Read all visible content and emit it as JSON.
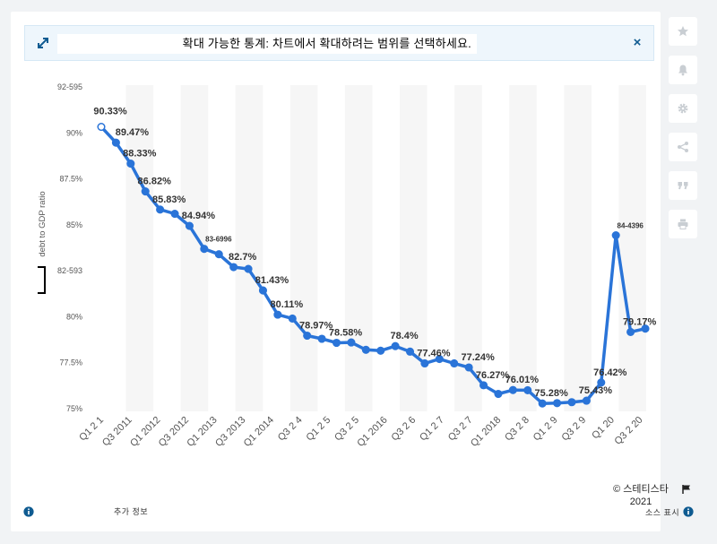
{
  "banner": {
    "text": "확대 가능한 통계: 차트에서 확대하려는 범위를 선택하세요.",
    "expand_icon": "expand-arrows-icon",
    "close_label": "×"
  },
  "toolbar": {
    "buttons": [
      {
        "name": "star-icon"
      },
      {
        "name": "bell-icon"
      },
      {
        "name": "gear-icon"
      },
      {
        "name": "share-icon"
      },
      {
        "name": "quote-icon"
      },
      {
        "name": "print-icon"
      }
    ]
  },
  "footer": {
    "copyright": "© 스테티스타",
    "year": "2021",
    "more_info": "추가 정보",
    "show_source": "소스 표시"
  },
  "colors": {
    "line": "#2a74d8",
    "band": "#f6f6f6",
    "label": "#333333",
    "axis_text": "#555555",
    "info": "#0f5b91"
  },
  "chart_data": {
    "type": "line",
    "ylabel": "debt to GDP ratio",
    "ylim": [
      74.85,
      92.6
    ],
    "y_ticks": [
      {
        "value": 92.5,
        "label": "92-595"
      },
      {
        "value": 90,
        "label": "90%"
      },
      {
        "value": 87.5,
        "label": "87.5%"
      },
      {
        "value": 85,
        "label": "85%"
      },
      {
        "value": 82.5,
        "label": "82-593"
      },
      {
        "value": 80,
        "label": "80%"
      },
      {
        "value": 77.5,
        "label": "77.5%"
      },
      {
        "value": 75,
        "label": "75%"
      }
    ],
    "x_labels": [
      "Q1 2 1",
      "Q3 2011",
      "Q1 2012",
      "Q3 2012",
      "Q1 2013",
      "Q3 2013",
      "Q1 2014",
      "Q3 2 4",
      "Q1 2 5",
      "Q3 2 5",
      "Q1 2016",
      "Q3 2 6",
      "Q1 2 7",
      "Q3 2 7",
      "Q1 2018",
      "Q3 2 8",
      "Q1 2 9",
      "Q3 2 9",
      "Q1 20",
      "Q3 2 20"
    ],
    "values": [
      90.33,
      89.47,
      88.33,
      86.82,
      85.83,
      85.6,
      84.94,
      83.69,
      83.4,
      82.7,
      82.6,
      81.43,
      80.11,
      79.9,
      78.97,
      78.8,
      78.58,
      78.6,
      78.2,
      78.15,
      78.4,
      78.1,
      77.46,
      77.7,
      77.46,
      77.24,
      76.27,
      75.8,
      76.01,
      76.0,
      75.28,
      75.3,
      75.35,
      75.43,
      76.42,
      84.43,
      79.17,
      79.35
    ],
    "data_labels": [
      {
        "i": 0,
        "text": "90.33%"
      },
      {
        "i": 1,
        "text": "89.47%"
      },
      {
        "i": 2,
        "text": "88.33%"
      },
      {
        "i": 3,
        "text": "86.82%"
      },
      {
        "i": 4,
        "text": "85.83%"
      },
      {
        "i": 6,
        "text": "84.94%"
      },
      {
        "i": 7,
        "text": "83-6996"
      },
      {
        "i": 9,
        "text": "82.7%"
      },
      {
        "i": 11,
        "text": "81.43%"
      },
      {
        "i": 12,
        "text": "80.11%"
      },
      {
        "i": 14,
        "text": "78.97%"
      },
      {
        "i": 16,
        "text": "78.58%"
      },
      {
        "i": 20,
        "text": "78.4%"
      },
      {
        "i": 22,
        "text": "77.46%"
      },
      {
        "i": 25,
        "text": "77.24%"
      },
      {
        "i": 26,
        "text": "76.27%"
      },
      {
        "i": 28,
        "text": "76.01%"
      },
      {
        "i": 30,
        "text": "75.28%"
      },
      {
        "i": 33,
        "text": "75.43%"
      },
      {
        "i": 34,
        "text": "76.42%"
      },
      {
        "i": 35,
        "text": "84-4396"
      },
      {
        "i": 36,
        "text": "79.17%"
      }
    ]
  }
}
